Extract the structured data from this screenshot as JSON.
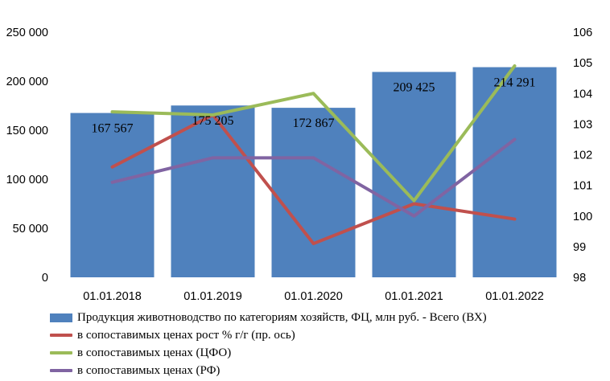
{
  "chart_data": {
    "type": "bar",
    "categories": [
      "01.01.2018",
      "01.01.2019",
      "01.01.2020",
      "01.01.2021",
      "01.01.2022"
    ],
    "series": [
      {
        "name": "Продукция животноводство по категориям хозяйств, ФЦ, млн руб. - Всего (ВХ)",
        "type": "bar",
        "axis": "left",
        "color": "#4F81BD",
        "values": [
          167567,
          175205,
          172867,
          209425,
          214291
        ],
        "labels": [
          "167 567",
          "175 205",
          "172 867",
          "209 425",
          "214 291"
        ]
      },
      {
        "name": "в сопоставимых ценах рост % г/г (пр. ось)",
        "type": "line",
        "axis": "right",
        "color": "#C0504D",
        "values": [
          101.6,
          103.3,
          99.1,
          100.4,
          99.9
        ]
      },
      {
        "name": "в сопоставимых ценах (ЦФО)",
        "type": "line",
        "axis": "right",
        "color": "#9BBB59",
        "values": [
          103.4,
          103.3,
          104.0,
          100.5,
          104.9
        ]
      },
      {
        "name": "в сопоставимых ценах (РФ)",
        "type": "line",
        "axis": "right",
        "color": "#8064A2",
        "values": [
          101.1,
          101.9,
          101.9,
          100.0,
          102.5
        ]
      }
    ],
    "y_left": {
      "ylim": [
        0,
        250000
      ],
      "ticks": [
        0,
        50000,
        100000,
        150000,
        200000,
        250000
      ],
      "tick_labels": [
        "0",
        "50 000",
        "100 000",
        "150 000",
        "200 000",
        "250 000"
      ]
    },
    "y_right": {
      "ylim": [
        98,
        106
      ],
      "ticks": [
        98,
        99,
        100,
        101,
        102,
        103,
        104,
        105,
        106
      ],
      "tick_labels": [
        "98",
        "99",
        "100",
        "101",
        "102",
        "103",
        "104",
        "105",
        "106"
      ]
    },
    "grid": false,
    "legend_position": "bottom"
  }
}
